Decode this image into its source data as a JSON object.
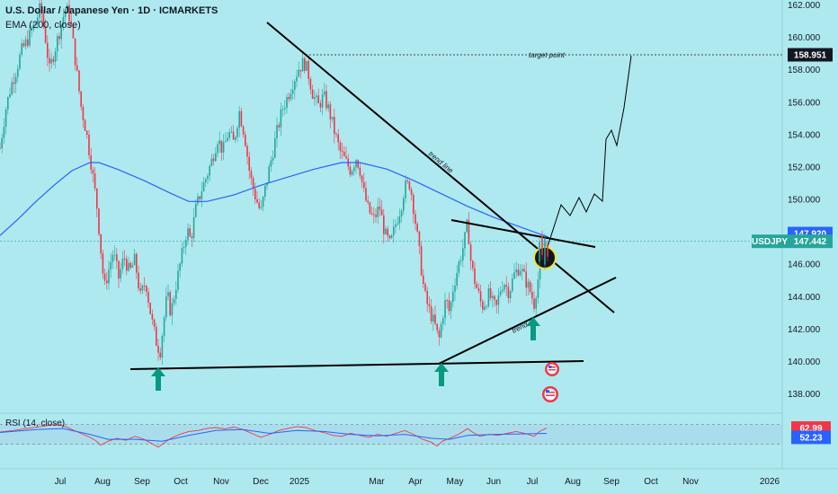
{
  "header": {
    "title": "U.S. Dollar / Japanese Yen · 1D · ICMARKETS",
    "indicator": "EMA (200, close)",
    "rsi": "RSI (14, close)"
  },
  "chart_data": {
    "type": "candlestick",
    "symbol": "USDJPY",
    "ylim": [
      137,
      162
    ],
    "y_ticks": [
      "162.000",
      "160.000",
      "158.000",
      "156.000",
      "154.000",
      "152.000",
      "150.000",
      "148.000",
      "146.000",
      "144.000",
      "142.000",
      "140.000",
      "138.000"
    ],
    "x_ticks": [
      "Jul",
      "Aug",
      "Sep",
      "Oct",
      "Nov",
      "Dec",
      "2025",
      "Mar",
      "Apr",
      "May",
      "Jun",
      "Jul",
      "Aug",
      "Sep",
      "Oct",
      "Nov",
      "2026"
    ],
    "price_path": [
      [
        0,
        153.2
      ],
      [
        6,
        155.5
      ],
      [
        12,
        157.0
      ],
      [
        18,
        158.0
      ],
      [
        24,
        159.2
      ],
      [
        30,
        159.8
      ],
      [
        36,
        160.5
      ],
      [
        40,
        161.0
      ],
      [
        45,
        161.9
      ],
      [
        50,
        160.2
      ],
      [
        55,
        158.0
      ],
      [
        62,
        159.5
      ],
      [
        68,
        160.8
      ],
      [
        73,
        161.9
      ],
      [
        78,
        161.2
      ],
      [
        84,
        158.5
      ],
      [
        90,
        155.8
      ],
      [
        96,
        154.2
      ],
      [
        102,
        152.0
      ],
      [
        108,
        149.5
      ],
      [
        112,
        147.0
      ],
      [
        116,
        144.5
      ],
      [
        120,
        145.5
      ],
      [
        126,
        146.8
      ],
      [
        132,
        145.2
      ],
      [
        138,
        146.5
      ],
      [
        144,
        145.5
      ],
      [
        150,
        146.3
      ],
      [
        156,
        144.0
      ],
      [
        162,
        145.0
      ],
      [
        166,
        143.5
      ],
      [
        170,
        142.2
      ],
      [
        174,
        141.2
      ],
      [
        178,
        140.6
      ],
      [
        182,
        142.5
      ],
      [
        186,
        144.2
      ],
      [
        190,
        143.0
      ],
      [
        196,
        144.8
      ],
      [
        202,
        146.5
      ],
      [
        208,
        148.2
      ],
      [
        212,
        147.5
      ],
      [
        218,
        149.5
      ],
      [
        224,
        150.6
      ],
      [
        230,
        151.5
      ],
      [
        236,
        152.5
      ],
      [
        242,
        153.8
      ],
      [
        248,
        153.0
      ],
      [
        254,
        154.2
      ],
      [
        260,
        153.5
      ],
      [
        266,
        155.5
      ],
      [
        272,
        154.0
      ],
      [
        278,
        151.5
      ],
      [
        284,
        150.2
      ],
      [
        290,
        149.2
      ],
      [
        296,
        151.0
      ],
      [
        302,
        152.6
      ],
      [
        308,
        154.2
      ],
      [
        314,
        155.6
      ],
      [
        320,
        156.4
      ],
      [
        326,
        157.3
      ],
      [
        332,
        158.1
      ],
      [
        338,
        158.5
      ],
      [
        342,
        158.0
      ],
      [
        348,
        156.5
      ],
      [
        354,
        155.8
      ],
      [
        360,
        156.4
      ],
      [
        366,
        155.5
      ],
      [
        372,
        154.2
      ],
      [
        378,
        153.0
      ],
      [
        384,
        152.4
      ],
      [
        390,
        151.8
      ],
      [
        396,
        152.6
      ],
      [
        400,
        152.0
      ],
      [
        404,
        150.6
      ],
      [
        410,
        149.3
      ],
      [
        416,
        148.8
      ],
      [
        422,
        149.6
      ],
      [
        428,
        147.9
      ],
      [
        434,
        147.2
      ],
      [
        440,
        148.5
      ],
      [
        446,
        149.6
      ],
      [
        450,
        150.8
      ],
      [
        456,
        151.0
      ],
      [
        460,
        149.5
      ],
      [
        464,
        147.8
      ],
      [
        468,
        146.0
      ],
      [
        472,
        144.2
      ],
      [
        476,
        143.4
      ],
      [
        480,
        142.8
      ],
      [
        484,
        142.2
      ],
      [
        488,
        141.3
      ],
      [
        492,
        142.8
      ],
      [
        496,
        143.9
      ],
      [
        500,
        143.0
      ],
      [
        504,
        144.6
      ],
      [
        510,
        146.0
      ],
      [
        516,
        147.3
      ],
      [
        520,
        148.6
      ],
      [
        524,
        146.0
      ],
      [
        528,
        145.0
      ],
      [
        532,
        144.2
      ],
      [
        536,
        143.4
      ],
      [
        540,
        143.7
      ],
      [
        544,
        144.2
      ],
      [
        548,
        143.6
      ],
      [
        552,
        143.3
      ],
      [
        556,
        144.4
      ],
      [
        560,
        145.0
      ],
      [
        566,
        144.3
      ],
      [
        572,
        145.4
      ],
      [
        578,
        145.9
      ],
      [
        584,
        145.1
      ],
      [
        590,
        144.3
      ],
      [
        594,
        143.6
      ],
      [
        598,
        145.0
      ],
      [
        602,
        146.0
      ],
      [
        606,
        147.0
      ],
      [
        610,
        146.8
      ]
    ],
    "ema200_path": [
      [
        0,
        147.8
      ],
      [
        20,
        148.8
      ],
      [
        40,
        149.9
      ],
      [
        60,
        150.9
      ],
      [
        80,
        151.8
      ],
      [
        100,
        152.3
      ],
      [
        110,
        152.3
      ],
      [
        130,
        151.9
      ],
      [
        160,
        151.2
      ],
      [
        190,
        150.4
      ],
      [
        210,
        149.9
      ],
      [
        230,
        149.9
      ],
      [
        260,
        150.3
      ],
      [
        290,
        150.9
      ],
      [
        320,
        151.4
      ],
      [
        350,
        151.9
      ],
      [
        380,
        152.3
      ],
      [
        400,
        152.3
      ],
      [
        430,
        151.9
      ],
      [
        460,
        151.2
      ],
      [
        490,
        150.4
      ],
      [
        520,
        149.6
      ],
      [
        550,
        148.9
      ],
      [
        580,
        148.3
      ],
      [
        600,
        147.9
      ],
      [
        610,
        147.7
      ]
    ],
    "rsi_path": [
      [
        0,
        55
      ],
      [
        15,
        58
      ],
      [
        30,
        62
      ],
      [
        45,
        66
      ],
      [
        60,
        70
      ],
      [
        70,
        68
      ],
      [
        80,
        60
      ],
      [
        90,
        52
      ],
      [
        100,
        44
      ],
      [
        106,
        38
      ],
      [
        112,
        28
      ],
      [
        120,
        36
      ],
      [
        130,
        42
      ],
      [
        140,
        38
      ],
      [
        150,
        46
      ],
      [
        160,
        40
      ],
      [
        170,
        30
      ],
      [
        176,
        24
      ],
      [
        182,
        32
      ],
      [
        190,
        42
      ],
      [
        200,
        50
      ],
      [
        210,
        56
      ],
      [
        220,
        58
      ],
      [
        230,
        62
      ],
      [
        240,
        64
      ],
      [
        250,
        61
      ],
      [
        260,
        65
      ],
      [
        270,
        60
      ],
      [
        280,
        52
      ],
      [
        290,
        44
      ],
      [
        300,
        50
      ],
      [
        310,
        58
      ],
      [
        320,
        62
      ],
      [
        330,
        66
      ],
      [
        340,
        64
      ],
      [
        350,
        58
      ],
      [
        360,
        54
      ],
      [
        370,
        48
      ],
      [
        380,
        46
      ],
      [
        390,
        52
      ],
      [
        400,
        48
      ],
      [
        410,
        44
      ],
      [
        420,
        50
      ],
      [
        430,
        46
      ],
      [
        440,
        52
      ],
      [
        450,
        58
      ],
      [
        460,
        50
      ],
      [
        470,
        40
      ],
      [
        480,
        34
      ],
      [
        486,
        26
      ],
      [
        492,
        36
      ],
      [
        500,
        42
      ],
      [
        510,
        50
      ],
      [
        520,
        62
      ],
      [
        526,
        54
      ],
      [
        534,
        46
      ],
      [
        544,
        50
      ],
      [
        554,
        48
      ],
      [
        564,
        52
      ],
      [
        574,
        56
      ],
      [
        584,
        52
      ],
      [
        594,
        46
      ],
      [
        600,
        56
      ],
      [
        608,
        63
      ]
    ],
    "rsi_ma_path": [
      [
        0,
        54
      ],
      [
        40,
        60
      ],
      [
        70,
        62
      ],
      [
        100,
        50
      ],
      [
        120,
        40
      ],
      [
        150,
        40
      ],
      [
        180,
        36
      ],
      [
        210,
        48
      ],
      [
        240,
        58
      ],
      [
        270,
        60
      ],
      [
        300,
        52
      ],
      [
        330,
        58
      ],
      [
        360,
        56
      ],
      [
        390,
        50
      ],
      [
        420,
        47
      ],
      [
        450,
        50
      ],
      [
        480,
        42
      ],
      [
        500,
        40
      ],
      [
        520,
        48
      ],
      [
        550,
        50
      ],
      [
        580,
        51
      ],
      [
        608,
        52
      ]
    ],
    "rsi_levels": {
      "upper": 70,
      "lower": 30
    },
    "current_price": {
      "label": "USDJPY",
      "value": "147.442",
      "color": "#26a69a"
    },
    "ema_value": {
      "value": "147.920",
      "color": "#2962ff"
    },
    "target": {
      "label": "target point",
      "value": "158.951"
    },
    "rsi_value": {
      "value": "62.99",
      "color": "#f23645"
    },
    "rsi_ma_value": {
      "value": "52.23",
      "color": "#2962ff"
    },
    "annotations": [
      "trend line",
      "trend"
    ]
  },
  "colors": {
    "background": "#aee9f0",
    "up": "#26a69a",
    "down": "#f23645",
    "ema": "#2962ff",
    "arrow": "#089981"
  }
}
